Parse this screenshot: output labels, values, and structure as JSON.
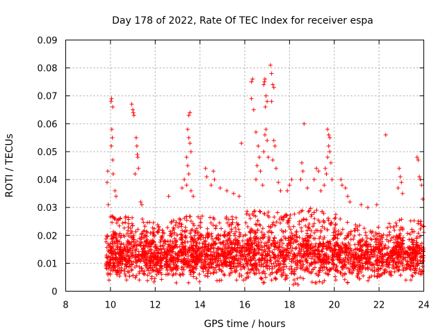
{
  "chart_data": {
    "type": "scatter",
    "title": "Day 178 of 2022, Rate Of TEC Index for receiver espa",
    "xlabel": "GPS time / hours",
    "ylabel": "ROTI / TECUs",
    "xlim": [
      8,
      24
    ],
    "ylim": [
      0,
      0.09
    ],
    "x_ticks": [
      "8",
      "10",
      "12",
      "14",
      "16",
      "18",
      "20",
      "22",
      "24"
    ],
    "y_ticks": [
      "0",
      "0.01",
      "0.02",
      "0.03",
      "0.04",
      "0.05",
      "0.06",
      "0.07",
      "0.08",
      "0.09"
    ],
    "grid": true,
    "marker": "+",
    "series_color": "#ff0000",
    "x_range_of_data": [
      9.8,
      24.0
    ],
    "band": [
      {
        "x": 10.0,
        "lo": 0.005,
        "hi": 0.027
      },
      {
        "x": 11.0,
        "lo": 0.005,
        "hi": 0.027
      },
      {
        "x": 12.0,
        "lo": 0.005,
        "hi": 0.025
      },
      {
        "x": 13.0,
        "lo": 0.005,
        "hi": 0.026
      },
      {
        "x": 14.0,
        "lo": 0.005,
        "hi": 0.028
      },
      {
        "x": 15.0,
        "lo": 0.006,
        "hi": 0.027
      },
      {
        "x": 16.0,
        "lo": 0.006,
        "hi": 0.03
      },
      {
        "x": 17.0,
        "lo": 0.004,
        "hi": 0.03
      },
      {
        "x": 18.0,
        "lo": 0.004,
        "hi": 0.028
      },
      {
        "x": 19.0,
        "lo": 0.005,
        "hi": 0.03
      },
      {
        "x": 20.0,
        "lo": 0.005,
        "hi": 0.028
      },
      {
        "x": 21.0,
        "lo": 0.005,
        "hi": 0.024
      },
      {
        "x": 22.0,
        "lo": 0.006,
        "hi": 0.023
      },
      {
        "x": 23.0,
        "lo": 0.006,
        "hi": 0.026
      },
      {
        "x": 24.0,
        "lo": 0.006,
        "hi": 0.025
      }
    ],
    "spikes": [
      {
        "x": 9.85,
        "y": 0.039
      },
      {
        "x": 9.88,
        "y": 0.043
      },
      {
        "x": 9.9,
        "y": 0.031
      },
      {
        "x": 10.05,
        "y": 0.069
      },
      {
        "x": 10.03,
        "y": 0.068
      },
      {
        "x": 10.1,
        "y": 0.066
      },
      {
        "x": 10.06,
        "y": 0.058
      },
      {
        "x": 10.08,
        "y": 0.055
      },
      {
        "x": 10.04,
        "y": 0.052
      },
      {
        "x": 10.1,
        "y": 0.047
      },
      {
        "x": 10.12,
        "y": 0.042
      },
      {
        "x": 10.2,
        "y": 0.036
      },
      {
        "x": 10.25,
        "y": 0.034
      },
      {
        "x": 10.95,
        "y": 0.067
      },
      {
        "x": 11.0,
        "y": 0.065
      },
      {
        "x": 11.02,
        "y": 0.064
      },
      {
        "x": 11.05,
        "y": 0.063
      },
      {
        "x": 11.15,
        "y": 0.055
      },
      {
        "x": 11.18,
        "y": 0.052
      },
      {
        "x": 11.2,
        "y": 0.049
      },
      {
        "x": 11.22,
        "y": 0.048
      },
      {
        "x": 11.25,
        "y": 0.044
      },
      {
        "x": 11.1,
        "y": 0.042
      },
      {
        "x": 11.35,
        "y": 0.032
      },
      {
        "x": 11.4,
        "y": 0.031
      },
      {
        "x": 12.6,
        "y": 0.034
      },
      {
        "x": 13.5,
        "y": 0.063
      },
      {
        "x": 13.55,
        "y": 0.064
      },
      {
        "x": 13.45,
        "y": 0.058
      },
      {
        "x": 13.5,
        "y": 0.055
      },
      {
        "x": 13.55,
        "y": 0.053
      },
      {
        "x": 13.4,
        "y": 0.048
      },
      {
        "x": 13.6,
        "y": 0.05
      },
      {
        "x": 13.45,
        "y": 0.045
      },
      {
        "x": 13.3,
        "y": 0.04
      },
      {
        "x": 13.5,
        "y": 0.042
      },
      {
        "x": 13.2,
        "y": 0.037
      },
      {
        "x": 13.4,
        "y": 0.038
      },
      {
        "x": 13.6,
        "y": 0.036
      },
      {
        "x": 13.7,
        "y": 0.034
      },
      {
        "x": 14.25,
        "y": 0.044
      },
      {
        "x": 14.3,
        "y": 0.041
      },
      {
        "x": 14.6,
        "y": 0.043
      },
      {
        "x": 14.65,
        "y": 0.04
      },
      {
        "x": 14.5,
        "y": 0.038
      },
      {
        "x": 14.9,
        "y": 0.037
      },
      {
        "x": 15.2,
        "y": 0.036
      },
      {
        "x": 15.5,
        "y": 0.035
      },
      {
        "x": 15.75,
        "y": 0.034
      },
      {
        "x": 15.85,
        "y": 0.053
      },
      {
        "x": 16.3,
        "y": 0.075
      },
      {
        "x": 16.35,
        "y": 0.076
      },
      {
        "x": 16.3,
        "y": 0.069
      },
      {
        "x": 16.4,
        "y": 0.065
      },
      {
        "x": 16.5,
        "y": 0.057
      },
      {
        "x": 16.6,
        "y": 0.052
      },
      {
        "x": 16.65,
        "y": 0.048
      },
      {
        "x": 16.55,
        "y": 0.045
      },
      {
        "x": 16.7,
        "y": 0.043
      },
      {
        "x": 16.5,
        "y": 0.04
      },
      {
        "x": 16.8,
        "y": 0.038
      },
      {
        "x": 16.85,
        "y": 0.074
      },
      {
        "x": 16.9,
        "y": 0.076
      },
      {
        "x": 16.88,
        "y": 0.075
      },
      {
        "x": 16.95,
        "y": 0.07
      },
      {
        "x": 17.0,
        "y": 0.068
      },
      {
        "x": 16.92,
        "y": 0.066
      },
      {
        "x": 16.95,
        "y": 0.058
      },
      {
        "x": 16.9,
        "y": 0.056
      },
      {
        "x": 17.0,
        "y": 0.054
      },
      {
        "x": 16.85,
        "y": 0.05
      },
      {
        "x": 17.05,
        "y": 0.048
      },
      {
        "x": 17.15,
        "y": 0.081
      },
      {
        "x": 17.2,
        "y": 0.078
      },
      {
        "x": 17.25,
        "y": 0.074
      },
      {
        "x": 17.3,
        "y": 0.073
      },
      {
        "x": 17.2,
        "y": 0.068
      },
      {
        "x": 17.3,
        "y": 0.054
      },
      {
        "x": 17.35,
        "y": 0.052
      },
      {
        "x": 17.25,
        "y": 0.047
      },
      {
        "x": 17.4,
        "y": 0.044
      },
      {
        "x": 17.5,
        "y": 0.039
      },
      {
        "x": 17.6,
        "y": 0.036
      },
      {
        "x": 17.9,
        "y": 0.036
      },
      {
        "x": 18.0,
        "y": 0.038
      },
      {
        "x": 18.1,
        "y": 0.04
      },
      {
        "x": 18.55,
        "y": 0.046
      },
      {
        "x": 18.6,
        "y": 0.043
      },
      {
        "x": 18.65,
        "y": 0.06
      },
      {
        "x": 18.5,
        "y": 0.04
      },
      {
        "x": 18.8,
        "y": 0.037
      },
      {
        "x": 19.2,
        "y": 0.044
      },
      {
        "x": 19.3,
        "y": 0.043
      },
      {
        "x": 19.1,
        "y": 0.04
      },
      {
        "x": 19.4,
        "y": 0.036
      },
      {
        "x": 19.7,
        "y": 0.058
      },
      {
        "x": 19.75,
        "y": 0.056
      },
      {
        "x": 19.8,
        "y": 0.055
      },
      {
        "x": 19.75,
        "y": 0.052
      },
      {
        "x": 19.8,
        "y": 0.05
      },
      {
        "x": 19.7,
        "y": 0.048
      },
      {
        "x": 19.85,
        "y": 0.046
      },
      {
        "x": 19.6,
        "y": 0.044
      },
      {
        "x": 19.65,
        "y": 0.042
      },
      {
        "x": 19.9,
        "y": 0.04
      },
      {
        "x": 19.55,
        "y": 0.038
      },
      {
        "x": 20.3,
        "y": 0.04
      },
      {
        "x": 20.35,
        "y": 0.038
      },
      {
        "x": 20.5,
        "y": 0.037
      },
      {
        "x": 20.6,
        "y": 0.034
      },
      {
        "x": 20.7,
        "y": 0.032
      },
      {
        "x": 21.2,
        "y": 0.031
      },
      {
        "x": 21.5,
        "y": 0.03
      },
      {
        "x": 21.9,
        "y": 0.031
      },
      {
        "x": 22.3,
        "y": 0.056
      },
      {
        "x": 22.9,
        "y": 0.044
      },
      {
        "x": 22.95,
        "y": 0.041
      },
      {
        "x": 23.0,
        "y": 0.039
      },
      {
        "x": 22.85,
        "y": 0.037
      },
      {
        "x": 23.05,
        "y": 0.035
      },
      {
        "x": 23.7,
        "y": 0.048
      },
      {
        "x": 23.75,
        "y": 0.047
      },
      {
        "x": 23.8,
        "y": 0.041
      },
      {
        "x": 23.85,
        "y": 0.04
      },
      {
        "x": 23.9,
        "y": 0.038
      },
      {
        "x": 23.95,
        "y": 0.033
      }
    ]
  }
}
